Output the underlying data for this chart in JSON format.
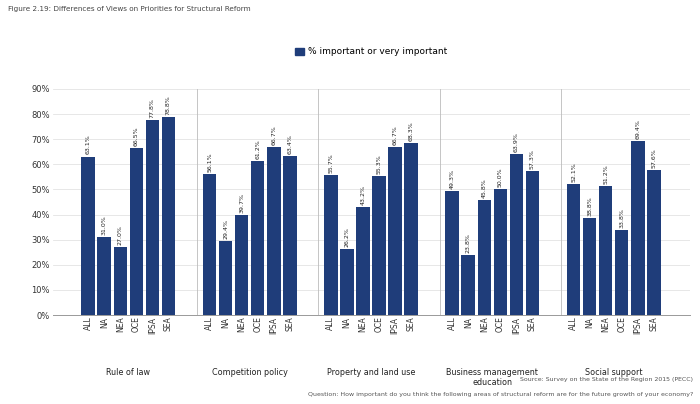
{
  "title": "Figure 2.19: Differences of Views on Priorities for Structural Reform",
  "legend_label": "% important or very important",
  "groups": [
    {
      "name": "Rule of law",
      "labels": [
        "ALL",
        "NA",
        "NEA",
        "OCE",
        "IPSA",
        "SEA"
      ],
      "values": [
        63.1,
        31.0,
        27.0,
        66.5,
        77.8,
        78.8
      ]
    },
    {
      "name": "Competition policy",
      "labels": [
        "ALL",
        "NA",
        "NEA",
        "OCE",
        "IPSA",
        "SEA"
      ],
      "values": [
        56.1,
        29.4,
        39.7,
        61.2,
        66.7,
        63.4
      ]
    },
    {
      "name": "Property and land use",
      "labels": [
        "ALL",
        "NA",
        "NEA",
        "OCE",
        "IPSA",
        "SEA"
      ],
      "values": [
        55.7,
        26.2,
        43.2,
        55.3,
        66.7,
        68.3
      ]
    },
    {
      "name": "Business management\neducation",
      "labels": [
        "ALL",
        "NA",
        "NEA",
        "OCE",
        "IPSA",
        "SEA"
      ],
      "values": [
        49.3,
        23.8,
        45.8,
        50.0,
        63.9,
        57.3
      ]
    },
    {
      "name": "Social support",
      "labels": [
        "ALL",
        "NA",
        "NEA",
        "OCE",
        "IPSA",
        "SEA"
      ],
      "values": [
        52.1,
        38.8,
        51.2,
        33.8,
        69.4,
        57.6
      ]
    }
  ],
  "bar_color": "#1F3D7A",
  "ylim": [
    0,
    90
  ],
  "yticks": [
    0,
    10,
    20,
    30,
    40,
    50,
    60,
    70,
    80,
    90
  ],
  "ytick_labels": [
    "0%",
    "10%",
    "20%",
    "30%",
    "40%",
    "50%",
    "60%",
    "70%",
    "80%",
    "90%"
  ],
  "source_line1": "Source: Survey on the State of the Region 2015 (PECC)",
  "source_line2": "Question: How important do you think the following areas of structural reform are for the future growth of your economy?"
}
